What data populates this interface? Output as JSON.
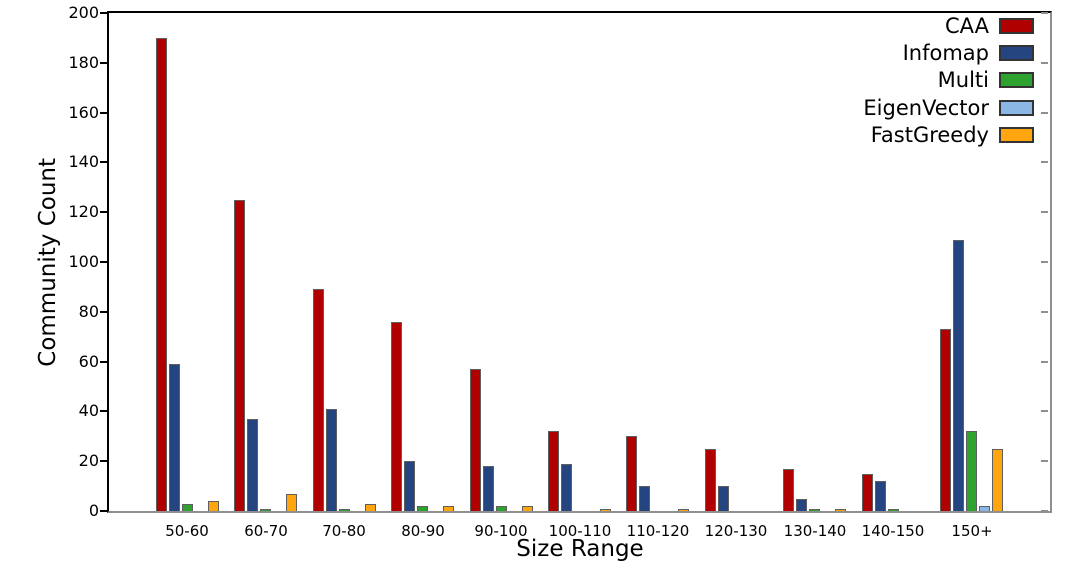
{
  "chart_data": {
    "type": "bar",
    "title": "",
    "xlabel": "Size Range",
    "ylabel": "Community Count",
    "ylim": [
      0,
      200
    ],
    "ytick_step": 20,
    "yticks": [
      0,
      20,
      40,
      60,
      80,
      100,
      120,
      140,
      160,
      180,
      200
    ],
    "grid": false,
    "legend_position": "top-right-inside",
    "categories": [
      "50-60",
      "60-70",
      "70-80",
      "80-90",
      "90-100",
      "100-110",
      "110-120",
      "120-130",
      "130-140",
      "140-150",
      "150+"
    ],
    "series": [
      {
        "name": "CAA",
        "color": "#b00000",
        "values": [
          190,
          125,
          89,
          76,
          57,
          32,
          30,
          25,
          17,
          15,
          73
        ]
      },
      {
        "name": "Infomap",
        "color": "#24457f",
        "values": [
          59,
          37,
          41,
          20,
          18,
          19,
          10,
          10,
          5,
          12,
          109
        ]
      },
      {
        "name": "Multi",
        "color": "#2ea22e",
        "values": [
          3,
          1,
          1,
          2,
          2,
          0,
          0,
          0,
          1,
          1,
          32
        ]
      },
      {
        "name": "EigenVector",
        "color": "#8ab7e3",
        "values": [
          0,
          0,
          0,
          0,
          0,
          0,
          0,
          0,
          0,
          0,
          2
        ]
      },
      {
        "name": "FastGreedy",
        "color": "#ffa50f",
        "values": [
          4,
          7,
          3,
          2,
          2,
          1,
          1,
          0,
          1,
          0,
          25
        ]
      }
    ],
    "colors": {
      "bar_edge": "#5f5f5f",
      "axis_dark": "#000000",
      "axis_gray": "#8f8f8f",
      "background": "#ffffff"
    }
  }
}
